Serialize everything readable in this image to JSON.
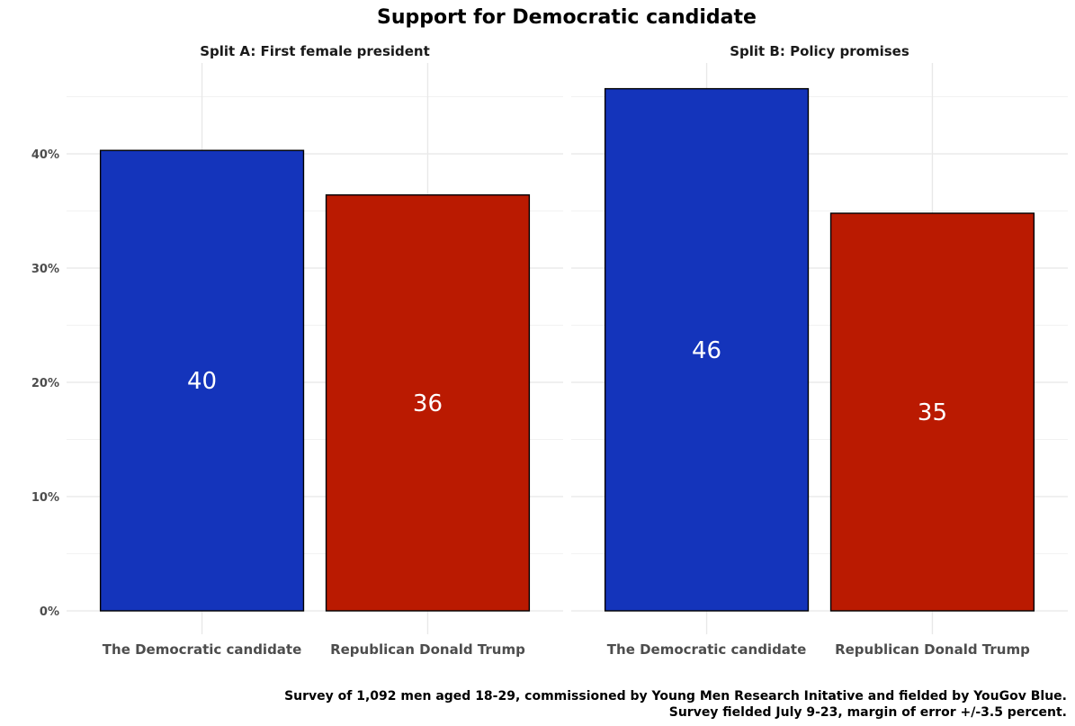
{
  "chart_data": {
    "type": "bar",
    "title": "Support for Democratic candidate",
    "caption": [
      "Survey of 1,092 men aged 18-29, commissioned by Young Men Research Initative and fielded by YouGov Blue.",
      "Survey fielded July 9-23, margin of error +/-3.5 percent."
    ],
    "categories": [
      "The Democratic candidate",
      "Republican Donald Trump"
    ],
    "bar_colors": [
      "#1434BB",
      "#BA1A01"
    ],
    "y_ticks": [
      "0%",
      "10%",
      "20%",
      "30%",
      "40%"
    ],
    "ylim": [
      0,
      46
    ],
    "grid": true,
    "panels": [
      {
        "name": "Split A: First female president",
        "values": [
          40.3,
          36.4
        ],
        "labels": [
          "40",
          "36"
        ]
      },
      {
        "name": "Split B: Policy promises",
        "values": [
          45.7,
          34.8
        ],
        "labels": [
          "46",
          "35"
        ]
      }
    ]
  }
}
